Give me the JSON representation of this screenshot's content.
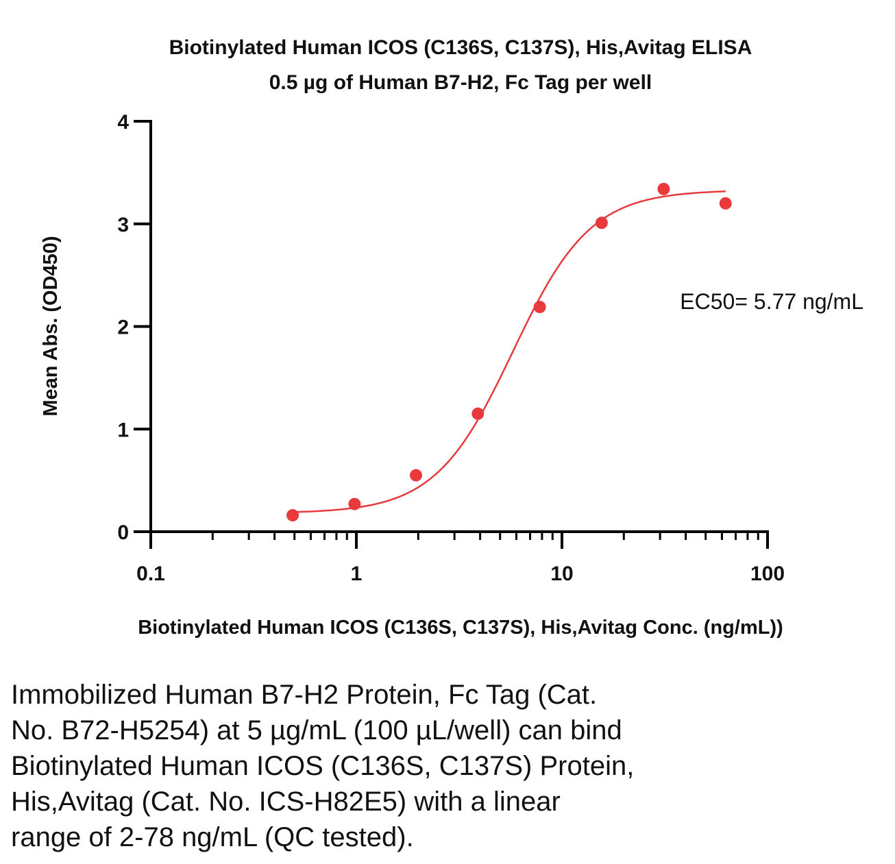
{
  "chart_data": {
    "type": "scatter",
    "title": "Biotinylated Human ICOS (C136S, C137S), His,Avitag ELISA",
    "subtitle": "0.5 µg of Human B7-H2, Fc Tag per well",
    "xlabel": "Biotinylated Human ICOS (C136S, C137S), His,Avitag Conc. (ng/mL))",
    "ylabel": "Mean Abs. (OD450)",
    "xscale": "log",
    "xlim": [
      0.1,
      100
    ],
    "ylim": [
      0,
      4
    ],
    "xticks": [
      "0.1",
      "1",
      "10",
      "100"
    ],
    "yticks": [
      "0",
      "1",
      "2",
      "3",
      "4"
    ],
    "grid": false,
    "color": "#e8393d",
    "points": [
      {
        "x": 0.49,
        "y": 0.16
      },
      {
        "x": 0.98,
        "y": 0.27
      },
      {
        "x": 1.95,
        "y": 0.55
      },
      {
        "x": 3.9,
        "y": 1.15
      },
      {
        "x": 7.8,
        "y": 2.19
      },
      {
        "x": 15.6,
        "y": 3.01
      },
      {
        "x": 31.25,
        "y": 3.34
      },
      {
        "x": 62.5,
        "y": 3.2
      }
    ],
    "fit": {
      "bottom": 0.18,
      "top": 3.33,
      "ec50": 5.77,
      "hill": 2.3
    },
    "annotation": "EC50= 5.77 ng/mL"
  },
  "caption": [
    "Immobilized Human B7-H2 Protein, Fc Tag (Cat.",
    "No. B72-H5254) at 5 µg/mL (100 µL/well) can bind",
    "Biotinylated Human ICOS (C136S, C137S) Protein,",
    "His,Avitag (Cat. No. ICS-H82E5) with a linear",
    "range of 2-78 ng/mL (QC tested)."
  ]
}
